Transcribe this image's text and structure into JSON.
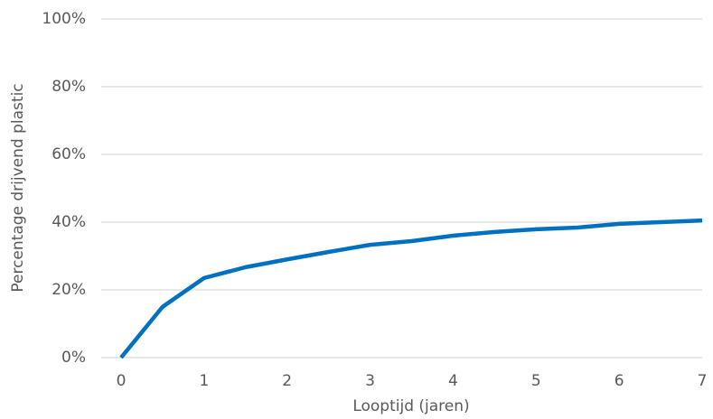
{
  "chart_data": {
    "type": "line",
    "x_label": "Looptijd (jaren)",
    "y_label": "Percentage drijvend plastic",
    "x": [
      0,
      0.5,
      1,
      1.5,
      2,
      2.5,
      3,
      3.5,
      4,
      4.5,
      5,
      5.5,
      6,
      6.5,
      7
    ],
    "series": [
      {
        "color": "#0070c0",
        "values": [
          0,
          15,
          23.5,
          26.7,
          29,
          31.2,
          33.3,
          34.4,
          36,
          37.1,
          37.9,
          38.4,
          39.5,
          40,
          40.5
        ]
      }
    ],
    "xlim": [
      0,
      7
    ],
    "xticks": [
      0,
      1,
      2,
      3,
      4,
      5,
      6,
      7
    ],
    "ylim": [
      0,
      100
    ],
    "yticks": [
      {
        "value": 0,
        "label": "0%"
      },
      {
        "value": 20,
        "label": "20%"
      },
      {
        "value": 40,
        "label": "40%"
      },
      {
        "value": 60,
        "label": "60%"
      },
      {
        "value": 80,
        "label": "80%"
      },
      {
        "value": 100,
        "label": "100%"
      }
    ],
    "grid": true
  }
}
